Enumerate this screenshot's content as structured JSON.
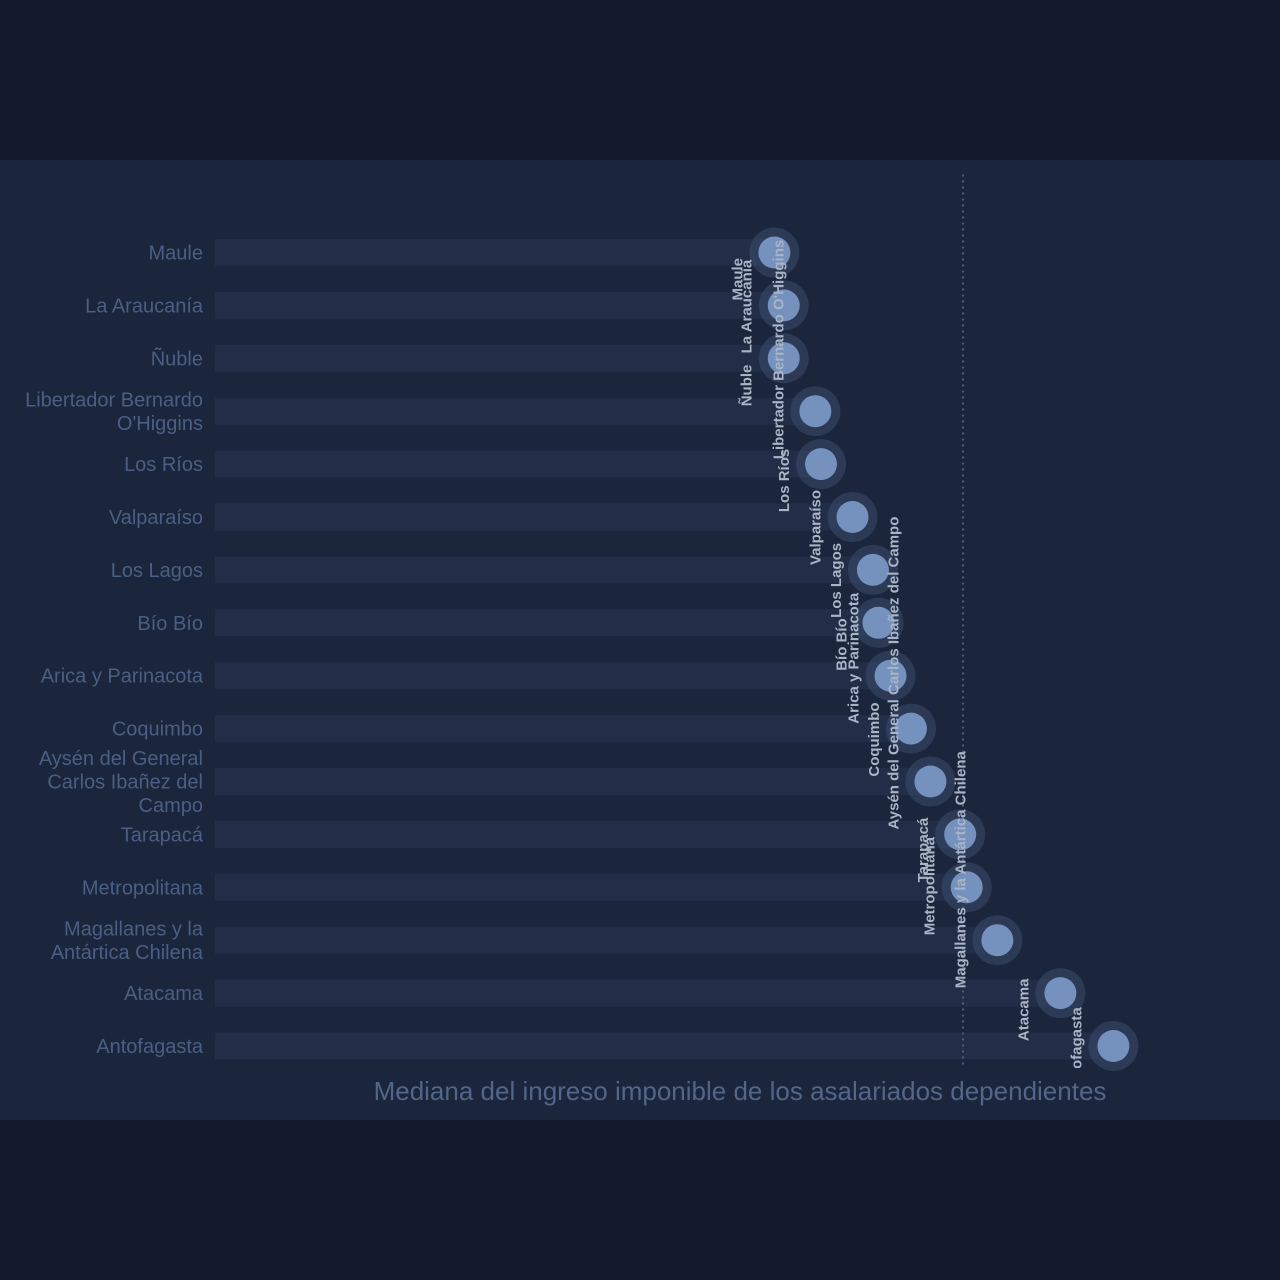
{
  "colors": {
    "page_background": "#141a2d",
    "panel_background": "#1b253b",
    "track": "#222e48",
    "dot": "#7591bd",
    "dot_halo": "#3b4c6e",
    "category_label": "#4a5f83",
    "point_label": "#a9b4c6",
    "reference_line": "#4e5d79",
    "axis_title": "#52668a"
  },
  "chart_data": {
    "type": "lollipop",
    "orientation": "horizontal",
    "categories": [
      [
        "Maule"
      ],
      [
        "La Araucanía"
      ],
      [
        "Ñuble"
      ],
      [
        "Libertador Bernardo",
        "O'Higgins"
      ],
      [
        "Los Ríos"
      ],
      [
        "Valparaíso"
      ],
      [
        "Los Lagos"
      ],
      [
        "Bío Bío"
      ],
      [
        "Arica y Parinacota"
      ],
      [
        "Coquimbo"
      ],
      [
        "Aysén del General",
        "Carlos Ibañez del",
        "Campo"
      ],
      [
        "Tarapacá"
      ],
      [
        "Metropolitana"
      ],
      [
        "Magallanes y la",
        "Antártica Chilena"
      ],
      [
        "Atacama"
      ],
      [
        "Antofagasta"
      ]
    ],
    "point_labels": [
      "Maule",
      "La Araucanía",
      "Ñuble",
      "Libertador Bernardo O'Higgins",
      "Los Ríos",
      "Valparaíso",
      "Los Lagos",
      "Bío Bío",
      "Arica y Parinacota",
      "Coquimbo",
      "Aysén del General Carlos Ibañez del Campo",
      "Tarapacá",
      "Metropolitana",
      "Magallanes y la Antártica Chilena",
      "Atacama",
      "Antofagasta"
    ],
    "values": [
      0.6353,
      0.6459,
      0.6459,
      0.6818,
      0.6882,
      0.724,
      0.7472,
      0.7535,
      0.7672,
      0.7904,
      0.8125,
      0.8463,
      0.8537,
      0.8885,
      0.9601,
      1.0203
    ],
    "xlim": [
      0,
      1.13
    ],
    "reference_value": 0.8495,
    "xlabel": "Mediana del ingreso imponible de los asalariados dependientes",
    "ylabel": "",
    "title": "",
    "grid": false,
    "x_tick_labels_shown": false
  }
}
